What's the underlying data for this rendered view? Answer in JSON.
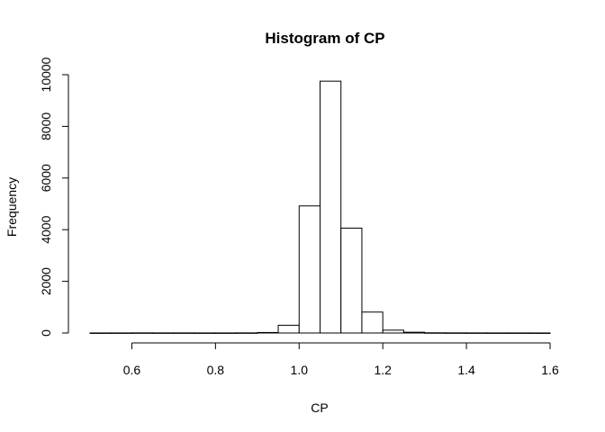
{
  "chart_data": {
    "type": "bar",
    "title": "Histogram of CP",
    "xlabel": "CP",
    "ylabel": "Frequency",
    "xlim": [
      0.5,
      1.6
    ],
    "ylim": [
      0,
      10000
    ],
    "bin_width": 0.05,
    "bins": [
      {
        "start": 0.5,
        "end": 0.55,
        "count": 2
      },
      {
        "start": 0.55,
        "end": 0.6,
        "count": 3
      },
      {
        "start": 0.6,
        "end": 0.65,
        "count": 5
      },
      {
        "start": 0.65,
        "end": 0.7,
        "count": 4
      },
      {
        "start": 0.7,
        "end": 0.75,
        "count": 4
      },
      {
        "start": 0.75,
        "end": 0.8,
        "count": 3
      },
      {
        "start": 0.8,
        "end": 0.85,
        "count": 3
      },
      {
        "start": 0.85,
        "end": 0.9,
        "count": 5
      },
      {
        "start": 0.9,
        "end": 0.95,
        "count": 20
      },
      {
        "start": 0.95,
        "end": 1.0,
        "count": 300
      },
      {
        "start": 1.0,
        "end": 1.05,
        "count": 4920
      },
      {
        "start": 1.05,
        "end": 1.1,
        "count": 9750
      },
      {
        "start": 1.1,
        "end": 1.15,
        "count": 4060
      },
      {
        "start": 1.15,
        "end": 1.2,
        "count": 810
      },
      {
        "start": 1.2,
        "end": 1.25,
        "count": 110
      },
      {
        "start": 1.25,
        "end": 1.3,
        "count": 30
      },
      {
        "start": 1.3,
        "end": 1.35,
        "count": 8
      },
      {
        "start": 1.35,
        "end": 1.4,
        "count": 5
      },
      {
        "start": 1.4,
        "end": 1.45,
        "count": 4
      },
      {
        "start": 1.45,
        "end": 1.5,
        "count": 3
      },
      {
        "start": 1.5,
        "end": 1.55,
        "count": 3
      },
      {
        "start": 1.55,
        "end": 1.6,
        "count": 2
      }
    ],
    "xticks": [
      "0.6",
      "0.8",
      "1.0",
      "1.2",
      "1.4",
      "1.6"
    ],
    "yticks": [
      "0",
      "2000",
      "4000",
      "6000",
      "8000",
      "10000"
    ],
    "grid": false,
    "legend": "none"
  }
}
